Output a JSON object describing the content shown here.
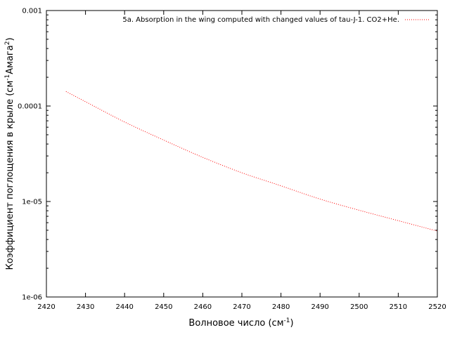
{
  "chart_data": {
    "type": "line",
    "xlabel": "Волновое число (см",
    "xlabel_sup": "-1",
    "xlabel_end": ")",
    "ylabel": "Коэффициент поглощения в крыле (см",
    "ylabel_sup1": "-1",
    "ylabel_mid": "Амага",
    "ylabel_sup2": "2",
    "ylabel_end": ")",
    "xlim": [
      2420,
      2520
    ],
    "ylim": [
      1e-06,
      0.001
    ],
    "yscale": "log",
    "x_ticks": [
      "2420",
      "2430",
      "2440",
      "2450",
      "2460",
      "2470",
      "2480",
      "2490",
      "2500",
      "2510",
      "2520"
    ],
    "y_ticks": [
      "1e-06",
      "1e-05",
      "0.0001",
      "0.001"
    ],
    "grid": false,
    "legend_position": "top-right",
    "series": [
      {
        "name": "5a. Absorption in the wing computed with changed values of tau-J-1. CO2+He.",
        "color": "#ff0000",
        "style": "dotted",
        "x": [
          2425,
          2430,
          2440,
          2450,
          2460,
          2470,
          2480,
          2490,
          2500,
          2510,
          2520
        ],
        "y": [
          0.000142,
          0.000111,
          6.8e-05,
          4.4e-05,
          2.9e-05,
          2e-05,
          1.46e-05,
          1.06e-05,
          8.1e-06,
          6.3e-06,
          4.9e-06
        ]
      }
    ]
  }
}
